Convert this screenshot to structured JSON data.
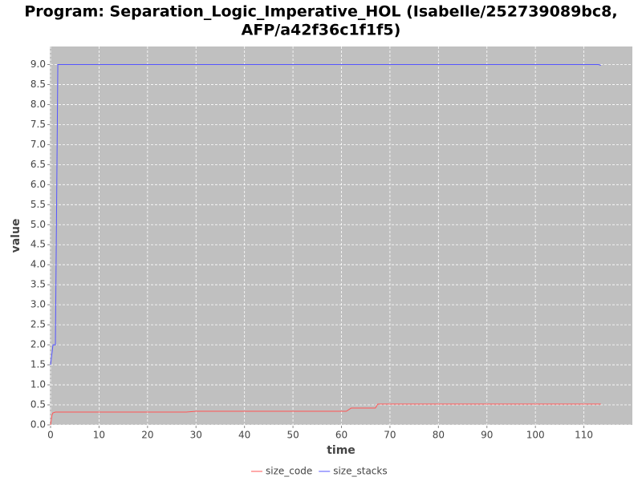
{
  "chart_data": {
    "type": "line",
    "title": "Program: Separation_Logic_Imperative_HOL (Isabelle/252739089bc8,",
    "subtitle": "AFP/a42f36c1f1f5)",
    "x_label": "time",
    "y_label": "value",
    "x": [
      0,
      0.3,
      0.5,
      1,
      1.5,
      28,
      30,
      61,
      62,
      67,
      67.5,
      113,
      113.5
    ],
    "series": [
      {
        "name": "size_code",
        "color": "#ff5555",
        "values": [
          0,
          0.25,
          0.3,
          0.32,
          0.32,
          0.32,
          0.34,
          0.34,
          0.42,
          0.42,
          0.52,
          0.52,
          0.52
        ]
      },
      {
        "name": "size_stacks",
        "color": "#5555ff",
        "values": [
          1.5,
          1.8,
          2.0,
          2.0,
          9.0,
          9.0,
          9.0,
          9.0,
          9.0,
          9.0,
          9.0,
          9.0,
          8.98
        ]
      }
    ],
    "xlim": [
      0,
      120
    ],
    "ylim": [
      0,
      9.45
    ],
    "xticks": [
      0,
      10,
      20,
      30,
      40,
      50,
      60,
      70,
      80,
      90,
      100,
      110
    ],
    "yticks": [
      {
        "value": 0,
        "label": "0.0"
      },
      0.5,
      {
        "value": 1,
        "label": "1.0"
      },
      1.5,
      {
        "value": 2,
        "label": "2.0"
      },
      2.5,
      {
        "value": 3,
        "label": "3.0"
      },
      3.5,
      {
        "value": 4,
        "label": "4.0"
      },
      4.5,
      {
        "value": 5,
        "label": "5.0"
      },
      5.5,
      {
        "value": 6,
        "label": "6.0"
      },
      6.5,
      {
        "value": 7,
        "label": "7.0"
      },
      7.5,
      {
        "value": 8,
        "label": "8.0"
      },
      8.5,
      {
        "value": 9,
        "label": "9.0"
      }
    ],
    "grid": true,
    "legend": "bottom"
  }
}
